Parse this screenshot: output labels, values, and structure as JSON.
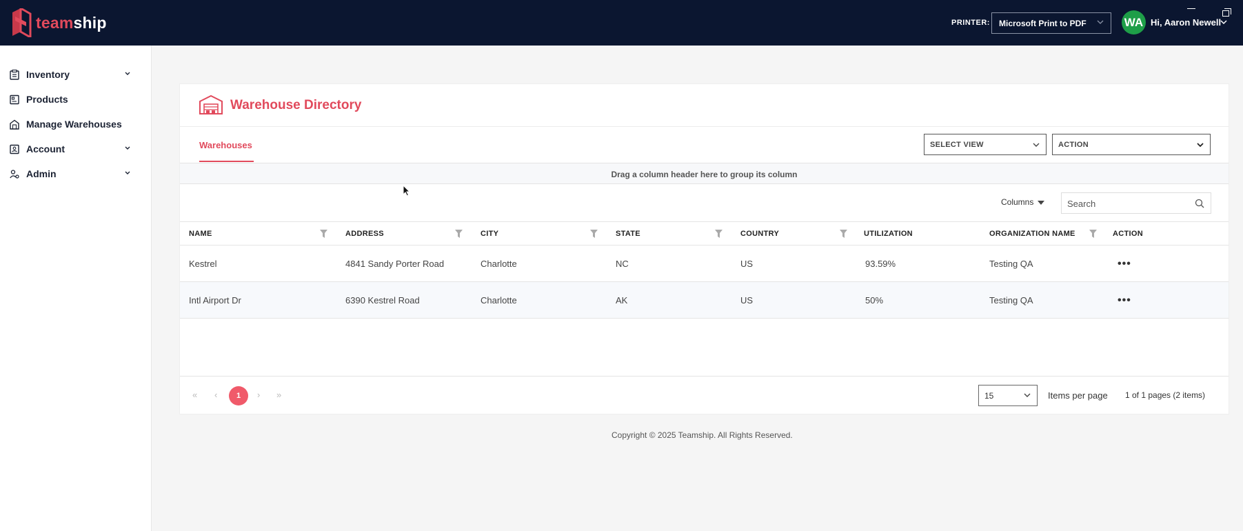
{
  "brand": {
    "name_part1": "team",
    "name_part2": "ship",
    "accent": "#e14a5c"
  },
  "topbar": {
    "printer_label": "PRINTER:",
    "printer_value": "Microsoft Print to PDF",
    "avatar_initials": "WA",
    "greeting": "Hi, Aaron Newell"
  },
  "sidebar": {
    "items": [
      {
        "label": "Inventory",
        "icon": "clipboard-icon",
        "expandable": true
      },
      {
        "label": "Products",
        "icon": "box-icon",
        "expandable": false
      },
      {
        "label": "Manage Warehouses",
        "icon": "warehouse-icon",
        "expandable": false
      },
      {
        "label": "Account",
        "icon": "id-card-icon",
        "expandable": true
      },
      {
        "label": "Admin",
        "icon": "users-cog-icon",
        "expandable": true
      }
    ]
  },
  "card": {
    "title": "Warehouse Directory",
    "tab": "Warehouses",
    "select_view": "SELECT VIEW",
    "action": "ACTION",
    "group_hint": "Drag a column header here to group its column",
    "columns_label": "Columns",
    "search_placeholder": "Search"
  },
  "table": {
    "headers": [
      "NAME",
      "ADDRESS",
      "CITY",
      "STATE",
      "COUNTRY",
      "UTILIZATION",
      "ORGANIZATION NAME",
      "ACTION"
    ],
    "rows": [
      {
        "name": "Kestrel",
        "address": "4841 Sandy Porter Road",
        "city": "Charlotte",
        "state": "NC",
        "country": "US",
        "utilization": "93.59%",
        "org": "Testing QA",
        "action": "•••"
      },
      {
        "name": "Intl Airport Dr",
        "address": "6390 Kestrel Road",
        "city": "Charlotte",
        "state": "AK",
        "country": "US",
        "utilization": "50%",
        "org": "Testing QA",
        "action": "•••"
      }
    ]
  },
  "pager": {
    "first": "«",
    "prev": "‹",
    "current": "1",
    "next": "›",
    "last": "»",
    "per_page": "15",
    "per_page_label": "Items per page",
    "info": "1 of 1 pages (2 items)"
  },
  "footer": {
    "copyright": "Copyright © 2025 Teamship. All Rights Reserved."
  }
}
